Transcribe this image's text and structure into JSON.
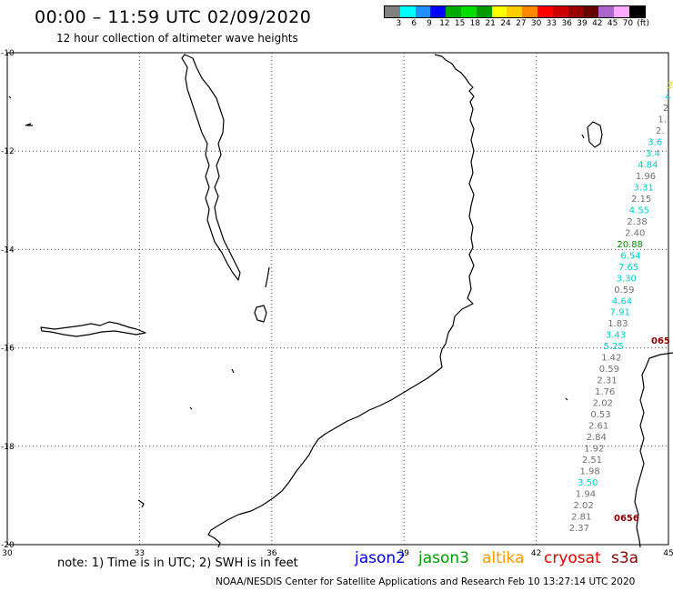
{
  "header": {
    "title": "00:00 – 11:59 UTC 02/09/2020",
    "subtitle": "12 hour collection of altimeter wave heights"
  },
  "colorbar": {
    "colors": [
      "#808080",
      "#00ffff",
      "#1e90ff",
      "#0000ff",
      "#00aa00",
      "#00dd00",
      "#009900",
      "#ffff00",
      "#ffcc00",
      "#ff8800",
      "#ff0000",
      "#cc0000",
      "#990000",
      "#660000",
      "#aa66cc",
      "#ffaaff",
      "#000000"
    ],
    "labels": [
      "3",
      "6",
      "9",
      "12",
      "15",
      "18",
      "21",
      "24",
      "27",
      "30",
      "33",
      "36",
      "39",
      "42",
      "45",
      "70",
      "(ft)"
    ]
  },
  "map": {
    "lat_ticks": [
      "-10",
      "-12",
      "-14",
      "-16",
      "-18",
      "-20"
    ],
    "lon_ticks": [
      "30",
      "33",
      "36",
      "39",
      "42",
      "45"
    ],
    "lon_range": [
      30,
      45
    ],
    "lat_range": [
      -20,
      -10
    ]
  },
  "swh_readings": {
    "track_cyan_gray": [
      {
        "v": "2",
        "c": "#e0d000"
      },
      {
        "v": "4",
        "c": "#00cccc"
      },
      {
        "v": "2",
        "c": "#707070"
      },
      {
        "v": "1.",
        "c": "#707070"
      },
      {
        "v": "2.",
        "c": "#707070"
      },
      {
        "v": "3.6",
        "c": "#00cccc"
      },
      {
        "v": "3.4",
        "c": "#00cccc"
      },
      {
        "v": "4.84",
        "c": "#00cccc"
      },
      {
        "v": "1.96",
        "c": "#707070"
      },
      {
        "v": "3.31",
        "c": "#00cccc"
      },
      {
        "v": "2.15",
        "c": "#707070"
      },
      {
        "v": "4.55",
        "c": "#00cccc"
      },
      {
        "v": "2.38",
        "c": "#707070"
      },
      {
        "v": "2.40",
        "c": "#707070"
      },
      {
        "v": "20.88",
        "c": "#008800"
      },
      {
        "v": "6.54",
        "c": "#00cccc"
      },
      {
        "v": "7.65",
        "c": "#00cccc"
      },
      {
        "v": "3.30",
        "c": "#00cccc"
      },
      {
        "v": "0.59",
        "c": "#707070"
      },
      {
        "v": "4.64",
        "c": "#00cccc"
      },
      {
        "v": "7.91",
        "c": "#00cccc"
      },
      {
        "v": "1.83",
        "c": "#707070"
      },
      {
        "v": "3.43",
        "c": "#00cccc"
      },
      {
        "v": "5.25",
        "c": "#00cccc"
      },
      {
        "v": "1.42",
        "c": "#707070"
      },
      {
        "v": "0.59",
        "c": "#707070"
      },
      {
        "v": "2.31",
        "c": "#707070"
      },
      {
        "v": "1.76",
        "c": "#707070"
      },
      {
        "v": "2.02",
        "c": "#707070"
      },
      {
        "v": "0.53",
        "c": "#707070"
      },
      {
        "v": "2.61",
        "c": "#707070"
      },
      {
        "v": "2.84",
        "c": "#707070"
      },
      {
        "v": "1.92",
        "c": "#707070"
      },
      {
        "v": "2.51",
        "c": "#707070"
      },
      {
        "v": "1.98",
        "c": "#707070"
      },
      {
        "v": "3.50",
        "c": "#00cccc"
      },
      {
        "v": "1.94",
        "c": "#707070"
      },
      {
        "v": "2.02",
        "c": "#707070"
      },
      {
        "v": "2.81",
        "c": "#707070"
      },
      {
        "v": "2.37",
        "c": "#707070"
      }
    ],
    "track_red": [
      {
        "v": "065",
        "c": "#880000"
      },
      {
        "v": "0656",
        "c": "#880000"
      }
    ]
  },
  "footer": {
    "note": "note: 1) Time is in UTC; 2) SWH is in feet",
    "legend": [
      {
        "label": "jason2",
        "color": "#0000cc"
      },
      {
        "label": "jason3",
        "color": "#009900"
      },
      {
        "label": "altika",
        "color": "#ff9900"
      },
      {
        "label": "cryosat",
        "color": "#dd0000"
      },
      {
        "label": "s3a",
        "color": "#880000"
      }
    ],
    "credit": "NOAA/NESDIS Center for Satellite Applications and Research   Feb 10 13:27:14 UTC 2020"
  }
}
